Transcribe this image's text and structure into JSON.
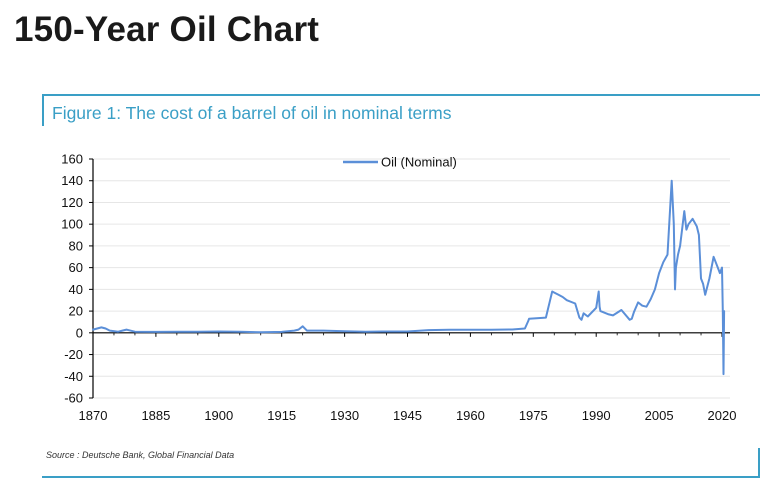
{
  "page_title": "150-Year Oil Chart",
  "figure_title": "Figure 1: The cost of a barrel of oil in nominal terms",
  "source": "Source : Deutsche Bank, Global Financial Data",
  "colors": {
    "accent": "#3a9fc6",
    "series": "#5b8fd8",
    "grid": "#e6e6e6",
    "axis": "#000000"
  },
  "chart_data": {
    "type": "line",
    "title": "Figure 1: The cost of a barrel of oil in nominal terms",
    "xlabel": "",
    "ylabel": "",
    "xlim": [
      1870,
      2020
    ],
    "ylim": [
      -60,
      160
    ],
    "xticks": [
      1870,
      1885,
      1900,
      1915,
      1930,
      1945,
      1960,
      1975,
      1990,
      2005,
      2020
    ],
    "yticks": [
      160,
      140,
      120,
      100,
      80,
      60,
      40,
      20,
      0,
      -20,
      -40,
      -60
    ],
    "grid": "horizontal",
    "legend": "top-center",
    "series": [
      {
        "name": "Oil (Nominal)",
        "x": [
          1870,
          1871,
          1872,
          1873,
          1874,
          1876,
          1877,
          1878,
          1880,
          1885,
          1890,
          1895,
          1900,
          1905,
          1910,
          1915,
          1918,
          1919,
          1920,
          1921,
          1925,
          1930,
          1935,
          1940,
          1945,
          1950,
          1955,
          1960,
          1965,
          1970,
          1973,
          1973.8,
          1974,
          1978,
          1979,
          1979.5,
          1980,
          1981,
          1982,
          1983,
          1985,
          1986,
          1986.5,
          1987,
          1988,
          1990,
          1990.6,
          1990.8,
          1991,
          1993,
          1994,
          1996,
          1998,
          1998.5,
          1999,
          2000,
          2001,
          2002,
          2003,
          2004,
          2005,
          2006,
          2007,
          2008,
          2008.5,
          2008.8,
          2009,
          2009.5,
          2010,
          2011,
          2011.5,
          2012,
          2013,
          2014,
          2014.5,
          2015,
          2015.5,
          2016,
          2017,
          2018,
          2018.5,
          2019,
          2019.5,
          2020,
          2020.2,
          2020.35,
          2020.5
        ],
        "y": [
          3,
          4,
          5,
          4,
          2,
          1,
          2,
          3,
          1,
          0.8,
          0.9,
          1,
          1.2,
          0.9,
          0.6,
          0.8,
          2,
          3,
          6,
          2,
          2,
          1.5,
          1,
          1.2,
          1.2,
          2.5,
          2.8,
          2.9,
          2.9,
          3.1,
          4,
          11,
          13,
          14,
          30,
          38,
          37,
          35,
          33,
          30,
          27,
          14,
          12,
          18,
          15,
          23,
          38,
          24,
          20,
          17,
          16,
          21,
          12,
          13,
          19,
          28,
          25,
          24,
          31,
          40,
          55,
          65,
          72,
          140,
          100,
          40,
          60,
          72,
          80,
          112,
          95,
          100,
          105,
          98,
          90,
          50,
          45,
          35,
          50,
          70,
          65,
          60,
          55,
          60,
          20,
          -38,
          20
        ]
      }
    ]
  }
}
